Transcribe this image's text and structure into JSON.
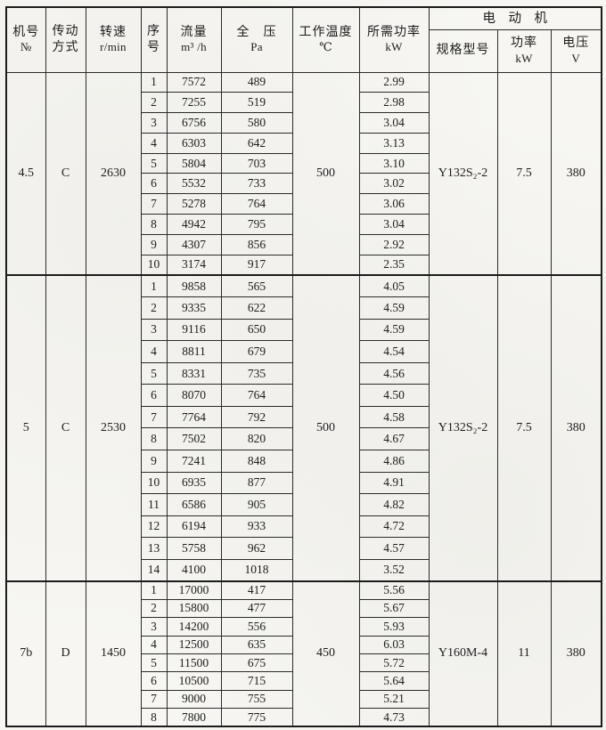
{
  "colors": {
    "ink": "#1c1c1c",
    "paper": "#f7f6f2"
  },
  "table": {
    "header": {
      "machine_no": {
        "line1": "机号",
        "line2": "№"
      },
      "drive": {
        "line1": "传动",
        "line2": "方式"
      },
      "speed": {
        "line1": "转速",
        "line2": "r/min"
      },
      "serial": {
        "line1": "序",
        "line2": "号"
      },
      "flow": {
        "line1": "流量",
        "line2": "m³ /h"
      },
      "pressure": {
        "line1": "全 压",
        "line2": "Pa"
      },
      "temp": {
        "line1": "工作温度",
        "line2": "℃"
      },
      "req_power": {
        "line1": "所需功率",
        "line2": "kW"
      },
      "motor_group": "电 动 机",
      "motor_model": "规格型号",
      "motor_power": {
        "line1": "功率",
        "line2": "kW"
      },
      "voltage": {
        "line1": "电压",
        "line2": "V"
      }
    },
    "groups": [
      {
        "machine_no": "4.5",
        "drive": "C",
        "speed": "2630",
        "temp": "500",
        "motor_model": "Y132S₂-2",
        "motor_power": "7.5",
        "voltage": "380",
        "rows": [
          {
            "no": "1",
            "flow": "7572",
            "pressure": "489",
            "power": "2.99"
          },
          {
            "no": "2",
            "flow": "7255",
            "pressure": "519",
            "power": "2.98"
          },
          {
            "no": "3",
            "flow": "6756",
            "pressure": "580",
            "power": "3.04"
          },
          {
            "no": "4",
            "flow": "6303",
            "pressure": "642",
            "power": "3.13"
          },
          {
            "no": "5",
            "flow": "5804",
            "pressure": "703",
            "power": "3.10"
          },
          {
            "no": "6",
            "flow": "5532",
            "pressure": "733",
            "power": "3.02"
          },
          {
            "no": "7",
            "flow": "5278",
            "pressure": "764",
            "power": "3.06"
          },
          {
            "no": "8",
            "flow": "4942",
            "pressure": "795",
            "power": "3.04"
          },
          {
            "no": "9",
            "flow": "4307",
            "pressure": "856",
            "power": "2.92"
          },
          {
            "no": "10",
            "flow": "3174",
            "pressure": "917",
            "power": "2.35"
          }
        ]
      },
      {
        "machine_no": "5",
        "drive": "C",
        "speed": "2530",
        "temp": "500",
        "motor_model": "Y132S₂-2",
        "motor_power": "7.5",
        "voltage": "380",
        "rows": [
          {
            "no": "1",
            "flow": "9858",
            "pressure": "565",
            "power": "4.05"
          },
          {
            "no": "2",
            "flow": "9335",
            "pressure": "622",
            "power": "4.59"
          },
          {
            "no": "3",
            "flow": "9116",
            "pressure": "650",
            "power": "4.59"
          },
          {
            "no": "4",
            "flow": "8811",
            "pressure": "679",
            "power": "4.54"
          },
          {
            "no": "5",
            "flow": "8331",
            "pressure": "735",
            "power": "4.56"
          },
          {
            "no": "6",
            "flow": "8070",
            "pressure": "764",
            "power": "4.50"
          },
          {
            "no": "7",
            "flow": "7764",
            "pressure": "792",
            "power": "4.58"
          },
          {
            "no": "8",
            "flow": "7502",
            "pressure": "820",
            "power": "4.67"
          },
          {
            "no": "9",
            "flow": "7241",
            "pressure": "848",
            "power": "4.86"
          },
          {
            "no": "10",
            "flow": "6935",
            "pressure": "877",
            "power": "4.91"
          },
          {
            "no": "11",
            "flow": "6586",
            "pressure": "905",
            "power": "4.82"
          },
          {
            "no": "12",
            "flow": "6194",
            "pressure": "933",
            "power": "4.72"
          },
          {
            "no": "13",
            "flow": "5758",
            "pressure": "962",
            "power": "4.57"
          },
          {
            "no": "14",
            "flow": "4100",
            "pressure": "1018",
            "power": "3.52"
          }
        ]
      },
      {
        "machine_no": "7b",
        "drive": "D",
        "speed": "1450",
        "temp": "450",
        "motor_model": "Y160M-4",
        "motor_power": "11",
        "voltage": "380",
        "rows": [
          {
            "no": "1",
            "flow": "17000",
            "pressure": "417",
            "power": "5.56"
          },
          {
            "no": "2",
            "flow": "15800",
            "pressure": "477",
            "power": "5.67"
          },
          {
            "no": "3",
            "flow": "14200",
            "pressure": "556",
            "power": "5.93"
          },
          {
            "no": "4",
            "flow": "12500",
            "pressure": "635",
            "power": "6.03"
          },
          {
            "no": "5",
            "flow": "11500",
            "pressure": "675",
            "power": "5.72"
          },
          {
            "no": "6",
            "flow": "10500",
            "pressure": "715",
            "power": "5.64"
          },
          {
            "no": "7",
            "flow": "9000",
            "pressure": "755",
            "power": "5.21"
          },
          {
            "no": "8",
            "flow": "7800",
            "pressure": "775",
            "power": "4.73"
          }
        ]
      }
    ]
  }
}
